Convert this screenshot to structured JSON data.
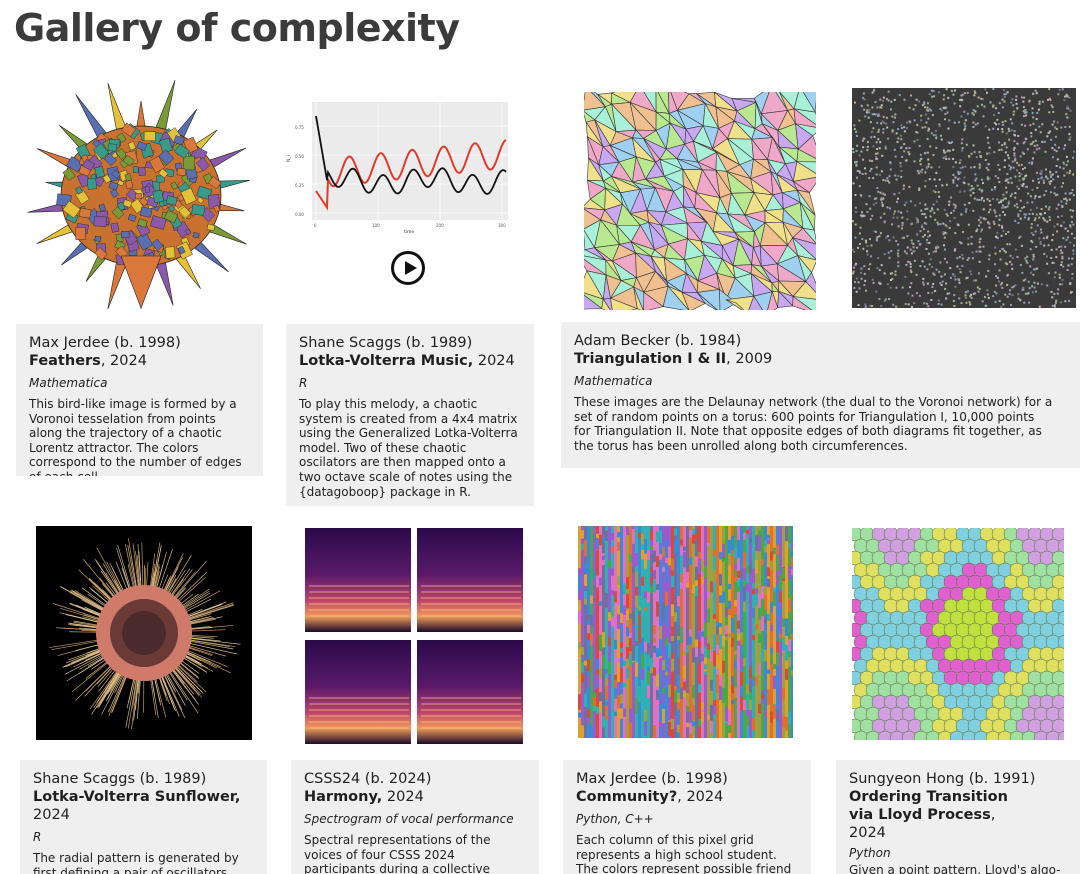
{
  "page": {
    "title": "Gallery of complexity"
  },
  "cards": [
    {
      "artist": "Max Jerdee (b. 1998)",
      "title": "Feathers",
      "year": ", 2024",
      "medium": "Mathematica",
      "description": "This bird-like image is formed by a Voronoi tesselation from points along the trajectory of a chaotic Lorentz attractor. The colors correspond to the number of edges of each cell."
    },
    {
      "artist": "Shane Scaggs (b. 1989)",
      "title": "Lotka-Volterra Music,",
      "year": " 2024",
      "medium": "R",
      "description": "To play this melody, a chaotic system is created from a 4x4 matrix using the Generalized Lotka-Volterra model. Two of these chaotic oscilators are then mapped onto a two octave scale of notes using the {datagoboop} package in R."
    },
    {
      "artist": "Adam Becker (b. 1984)",
      "title": "Triangulation I & II",
      "year": ", 2009",
      "medium": "Mathematica",
      "description": "These images are the Delaunay network (the dual to the Voronoi network) for a set of random points on a torus: 600 points for Triangulation I, 10,000 points for Triangulation II. Note that opposite edges of both diagrams fit together, as the torus has been unrolled along both circumferences."
    },
    {
      "artist": "Shane Scaggs (b. 1989)",
      "title": "Lotka-Volterra Sunflower,",
      "year": " 2024",
      "medium": "R",
      "description": "The radial pattern is generated by first defining a pair of oscillators using a Lotka-Volterra system. The"
    },
    {
      "artist": "CSSS24 (b. 2024)",
      "title": "Harmony,",
      "year": " 2024",
      "medium": "Spectrogram of vocal performance",
      "description": "Spectral representations of the voices of four CSSS 2024 participants during a collective experiment to converge"
    },
    {
      "artist": "Max Jerdee (b. 1998)",
      "title": "Community?",
      "year": ", 2024",
      "medium": "Python, C++",
      "description": "Each column of this pixel grid represents a high school student. The colors represent possible friend"
    },
    {
      "artist": "Sungyeon Hong (b. 1991)",
      "title": "Ordering Transition via Lloyd Process",
      "year": ", 2024",
      "medium": "Python",
      "description": "Given a point pattern, Lloyd's algo-rithm considers its Voronoi tessella-"
    }
  ],
  "plot": {
    "xlabel": "time",
    "ylabel": "N_i",
    "y_ticks": [
      "0.75",
      "0.50",
      "0.25",
      "0.00"
    ],
    "x_ticks": [
      "0",
      "100",
      "200",
      "300"
    ],
    "colors": {
      "series_a": "#111111",
      "series_b": "#e03a2a"
    }
  },
  "icons": {
    "play": "play-button-icon"
  }
}
